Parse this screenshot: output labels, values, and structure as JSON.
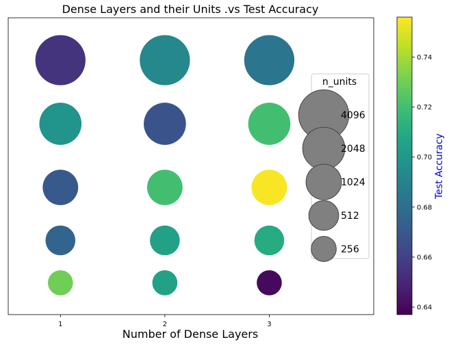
{
  "chart_data": {
    "type": "scatter",
    "title": "Dense Layers and their Units .vs Test Accuracy",
    "xlabel": "Number of Dense Layers",
    "ylabel": "",
    "xlim": [
      0.5,
      4.0
    ],
    "ylim": [
      0,
      7
    ],
    "x_ticks": [
      "1",
      "2",
      "3"
    ],
    "y_ticks_visible": false,
    "grid": false,
    "points": [
      {
        "x": 1,
        "y": 6,
        "units": 4096,
        "accuracy": 0.655
      },
      {
        "x": 1,
        "y": 4.5,
        "units": 2048,
        "accuracy": 0.698
      },
      {
        "x": 1,
        "y": 3,
        "units": 1024,
        "accuracy": 0.67
      },
      {
        "x": 1,
        "y": 1.75,
        "units": 512,
        "accuracy": 0.675
      },
      {
        "x": 1,
        "y": 0.75,
        "units": 256,
        "accuracy": 0.73
      },
      {
        "x": 2,
        "y": 6,
        "units": 4096,
        "accuracy": 0.692
      },
      {
        "x": 2,
        "y": 4.5,
        "units": 2048,
        "accuracy": 0.668
      },
      {
        "x": 2,
        "y": 3,
        "units": 1024,
        "accuracy": 0.72
      },
      {
        "x": 2,
        "y": 1.75,
        "units": 512,
        "accuracy": 0.705
      },
      {
        "x": 2,
        "y": 0.75,
        "units": 256,
        "accuracy": 0.705
      },
      {
        "x": 3,
        "y": 6,
        "units": 4096,
        "accuracy": 0.683
      },
      {
        "x": 3,
        "y": 4.5,
        "units": 2048,
        "accuracy": 0.72
      },
      {
        "x": 3,
        "y": 3,
        "units": 1024,
        "accuracy": 0.755
      },
      {
        "x": 3,
        "y": 1.75,
        "units": 512,
        "accuracy": 0.71
      },
      {
        "x": 3,
        "y": 0.75,
        "units": 256,
        "accuracy": 0.64
      }
    ],
    "size_legend": {
      "title": "n_units",
      "placement": "right",
      "entries": [
        {
          "label": "4096",
          "units": 4096
        },
        {
          "label": "2048",
          "units": 2048
        },
        {
          "label": "1024",
          "units": 1024
        },
        {
          "label": "512",
          "units": 512
        },
        {
          "label": "256",
          "units": 256
        }
      ]
    },
    "colorbar": {
      "label": "Test Accuracy",
      "label_color": "#0000cc",
      "colormap": "viridis",
      "range": [
        0.637,
        0.756
      ],
      "ticks": [
        "0.64",
        "0.66",
        "0.68",
        "0.70",
        "0.72",
        "0.74"
      ],
      "tick_values": [
        0.64,
        0.66,
        0.68,
        0.7,
        0.72,
        0.74
      ]
    },
    "marker_edge_color": "#444444",
    "legend_marker_color": "#808080"
  }
}
